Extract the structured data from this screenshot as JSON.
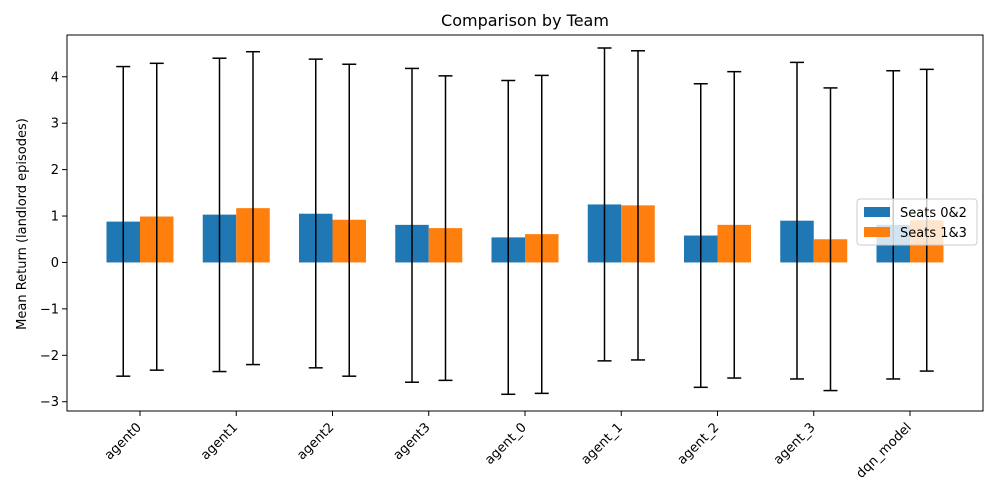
{
  "chart_data": {
    "type": "bar",
    "title": "Comparison by Team",
    "xlabel": "",
    "ylabel": "Mean Return (landlord episodes)",
    "categories": [
      "agent0",
      "agent1",
      "agent2",
      "agent3",
      "agent_0",
      "agent_1",
      "agent_2",
      "agent_3",
      "dqn_model"
    ],
    "ylim": [
      -3.2,
      4.9
    ],
    "yticks": [
      -3,
      -2,
      -1,
      0,
      1,
      2,
      3,
      4
    ],
    "ytick_labels": [
      "−3",
      "−2",
      "−1",
      "0",
      "1",
      "2",
      "3",
      "4"
    ],
    "legend_position": "center-right",
    "series": [
      {
        "name": "Seats 0&2",
        "color": "#1f77b4",
        "values": [
          0.88,
          1.03,
          1.05,
          0.81,
          0.54,
          1.25,
          0.58,
          0.9,
          0.81
        ],
        "err_low": [
          -2.45,
          -2.35,
          -2.27,
          -2.58,
          -2.84,
          -2.12,
          -2.69,
          -2.51,
          -2.51
        ],
        "err_high": [
          4.22,
          4.4,
          4.38,
          4.18,
          3.92,
          4.62,
          3.85,
          4.31,
          4.13
        ]
      },
      {
        "name": "Seats 1&3",
        "color": "#ff7f0e",
        "values": [
          0.99,
          1.17,
          0.92,
          0.74,
          0.61,
          1.23,
          0.81,
          0.5,
          0.91
        ],
        "err_low": [
          -2.32,
          -2.2,
          -2.45,
          -2.54,
          -2.82,
          -2.1,
          -2.49,
          -2.76,
          -2.34
        ],
        "err_high": [
          4.29,
          4.54,
          4.27,
          4.02,
          4.03,
          4.56,
          4.11,
          3.76,
          4.16
        ]
      }
    ]
  }
}
